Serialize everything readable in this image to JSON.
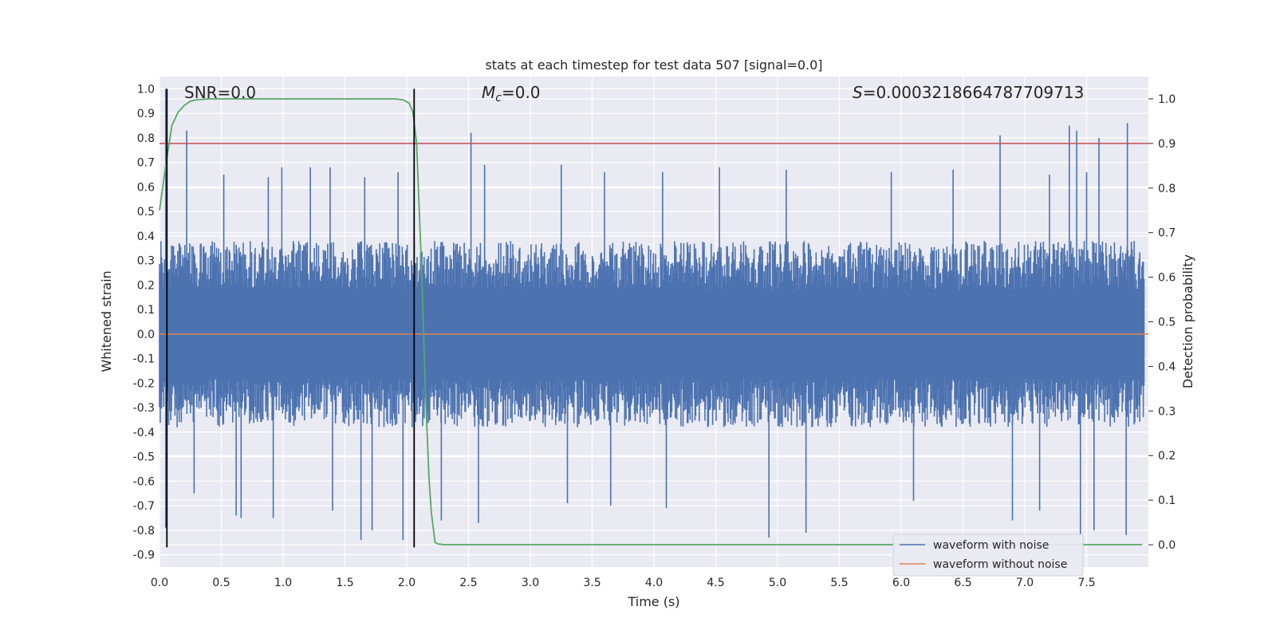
{
  "chart_data": {
    "type": "line",
    "title": "stats at each timestep for test data 507 [signal=0.0]",
    "xlabel": "Time (s)",
    "ylabel": "Whitened strain",
    "y2label": "Detection probability",
    "xlim": [
      0.0,
      8.0
    ],
    "ylim": [
      -0.95,
      1.05
    ],
    "y2lim": [
      -0.05,
      1.05
    ],
    "x_ticks": [
      "0.0",
      "0.5",
      "1.0",
      "1.5",
      "2.0",
      "2.5",
      "3.0",
      "3.5",
      "4.0",
      "4.5",
      "5.0",
      "5.5",
      "6.0",
      "6.5",
      "7.0",
      "7.5"
    ],
    "y_ticks": [
      "1.0",
      "0.9",
      "0.8",
      "0.7",
      "0.6",
      "0.5",
      "0.4",
      "0.3",
      "0.2",
      "0.1",
      "0.0",
      "-0.1",
      "-0.2",
      "-0.3",
      "-0.4",
      "-0.5",
      "-0.6",
      "-0.7",
      "-0.8",
      "-0.9"
    ],
    "y2_ticks": [
      "1.0",
      "0.9",
      "0.8",
      "0.7",
      "0.6",
      "0.5",
      "0.4",
      "0.3",
      "0.2",
      "0.1",
      "0.0"
    ],
    "grid": true,
    "legend_position": "lower right",
    "annotations": {
      "snr": "SNR=0.0",
      "mc_symbol": "M",
      "mc_sub": "c",
      "mc_value": "=0.0",
      "s_symbol": "S",
      "s_value": "=0.0003218664787709713"
    },
    "colors": {
      "background": "#eaeaf2",
      "grid": "#ffffff",
      "noisy": "#4c72b0",
      "clean": "#dd8452",
      "probability": "#55a868",
      "threshold": "#c44e52",
      "marker": "#000000"
    },
    "series": [
      {
        "name": "waveform with noise",
        "axis": "left",
        "description_of_values": "whitened noise, roughly symmetric about 0, typical amplitude ±0.3 with peaks near ±0.8",
        "peaks_upper": [
          [
            0.05,
            1.0
          ],
          [
            0.22,
            0.83
          ],
          [
            0.52,
            0.65
          ],
          [
            0.88,
            0.64
          ],
          [
            0.99,
            0.68
          ],
          [
            1.22,
            0.68
          ],
          [
            1.38,
            0.68
          ],
          [
            1.66,
            0.64
          ],
          [
            1.93,
            0.66
          ],
          [
            2.52,
            0.82
          ],
          [
            2.63,
            0.69
          ],
          [
            3.25,
            0.69
          ],
          [
            3.6,
            0.66
          ],
          [
            4.07,
            0.66
          ],
          [
            4.53,
            0.68
          ],
          [
            5.07,
            0.67
          ],
          [
            5.92,
            0.66
          ],
          [
            6.42,
            0.67
          ],
          [
            6.8,
            0.81
          ],
          [
            7.2,
            0.65
          ],
          [
            7.36,
            0.85
          ],
          [
            7.42,
            0.83
          ],
          [
            7.5,
            0.66
          ],
          [
            7.6,
            0.8
          ],
          [
            7.83,
            0.86
          ]
        ],
        "peaks_lower": [
          [
            0.05,
            -0.79
          ],
          [
            0.28,
            -0.65
          ],
          [
            0.62,
            -0.74
          ],
          [
            0.66,
            -0.75
          ],
          [
            0.92,
            -0.75
          ],
          [
            1.4,
            -0.72
          ],
          [
            1.63,
            -0.84
          ],
          [
            1.72,
            -0.8
          ],
          [
            1.97,
            -0.84
          ],
          [
            2.28,
            -0.76
          ],
          [
            2.58,
            -0.77
          ],
          [
            3.3,
            -0.69
          ],
          [
            3.65,
            -0.7
          ],
          [
            4.1,
            -0.71
          ],
          [
            4.93,
            -0.83
          ],
          [
            5.23,
            -0.81
          ],
          [
            6.1,
            -0.68
          ],
          [
            6.9,
            -0.76
          ],
          [
            7.12,
            -0.72
          ],
          [
            7.45,
            -0.82
          ],
          [
            7.56,
            -0.8
          ],
          [
            7.82,
            -0.82
          ]
        ]
      },
      {
        "name": "waveform without noise",
        "axis": "left",
        "x": [
          0.0,
          8.0
        ],
        "y": [
          0.0,
          0.0
        ]
      },
      {
        "name": "",
        "axis": "right",
        "x": [
          0.0,
          0.05,
          0.1,
          0.15,
          0.2,
          0.25,
          0.3,
          0.4,
          0.6,
          1.0,
          1.5,
          1.9,
          1.97,
          2.02,
          2.05,
          2.08,
          2.12,
          2.15,
          2.18,
          2.2,
          2.23,
          2.25,
          2.3,
          2.4,
          3.0,
          4.0,
          5.0,
          6.0,
          7.0,
          7.95
        ],
        "y": [
          0.75,
          0.85,
          0.94,
          0.97,
          0.985,
          0.995,
          0.998,
          1.0,
          1.0,
          1.0,
          1.0,
          1.0,
          0.998,
          0.99,
          0.97,
          0.9,
          0.62,
          0.35,
          0.15,
          0.07,
          0.005,
          0.002,
          0.0,
          0.0,
          0.0,
          0.0,
          0.0,
          0.0,
          0.0,
          0.0
        ]
      }
    ],
    "threshold_y2": 0.9,
    "markers_x": [
      0.06,
      2.06
    ],
    "legend": [
      "waveform with noise",
      "waveform without noise"
    ]
  }
}
